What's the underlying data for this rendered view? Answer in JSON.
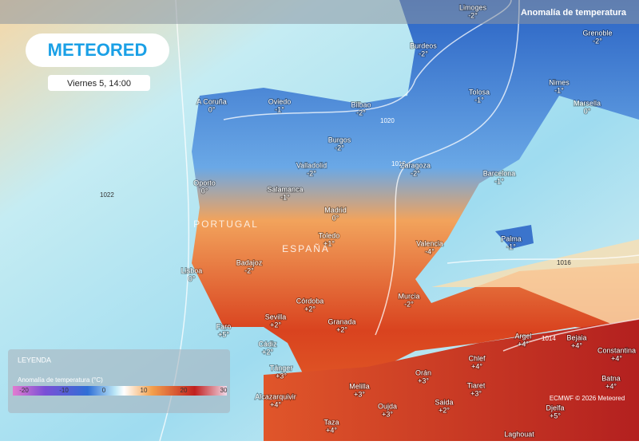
{
  "header": {
    "logo": "METEORED",
    "date": "Viernes 5, 14:00",
    "title": "Anomalía de temperatura"
  },
  "countries": [
    "PORTUGAL",
    "ESPAÑA"
  ],
  "isobars": [
    "1022",
    "1020",
    "1018",
    "1016",
    "1014"
  ],
  "cities": [
    {
      "name": "Limoges",
      "value": "-2°"
    },
    {
      "name": "Grenoble",
      "value": "-2°"
    },
    {
      "name": "Burdeos",
      "value": "-2°"
    },
    {
      "name": "Nimes",
      "value": "-1°"
    },
    {
      "name": "Tolosa",
      "value": "-1°"
    },
    {
      "name": "Marsella",
      "value": "0°"
    },
    {
      "name": "A Coruña",
      "value": "0°"
    },
    {
      "name": "Oviedo",
      "value": "-1°"
    },
    {
      "name": "Bilbao",
      "value": "-2°"
    },
    {
      "name": "Burgos",
      "value": "-2°"
    },
    {
      "name": "Zaragoza",
      "value": "-2°"
    },
    {
      "name": "Valladolid",
      "value": "-2°"
    },
    {
      "name": "Barcelona",
      "value": "-1°"
    },
    {
      "name": "Oporto",
      "value": "0°"
    },
    {
      "name": "Salamanca",
      "value": "-1°"
    },
    {
      "name": "Madrid",
      "value": "0°"
    },
    {
      "name": "Toledo",
      "value": "+1°"
    },
    {
      "name": "Valencia",
      "value": "-4°"
    },
    {
      "name": "Palma",
      "value": "-1°"
    },
    {
      "name": "Lisboa",
      "value": "0°"
    },
    {
      "name": "Badajoz",
      "value": "-2°"
    },
    {
      "name": "Córdoba",
      "value": "+2°"
    },
    {
      "name": "Sevilla",
      "value": "+2°"
    },
    {
      "name": "Granada",
      "value": "+2°"
    },
    {
      "name": "Murcia",
      "value": "-2°"
    },
    {
      "name": "Faro",
      "value": "+5°"
    },
    {
      "name": "Cádiz",
      "value": "+2°"
    },
    {
      "name": "Argel",
      "value": "+4°"
    },
    {
      "name": "Bejaia",
      "value": "+4°"
    },
    {
      "name": "Constantina",
      "value": "+4°"
    },
    {
      "name": "Tánger",
      "value": "+3°"
    },
    {
      "name": "Orán",
      "value": "+3°"
    },
    {
      "name": "Chlef",
      "value": "+4°"
    },
    {
      "name": "Batna",
      "value": "+4°"
    },
    {
      "name": "Melilla",
      "value": "+3°"
    },
    {
      "name": "Tiaret",
      "value": "+3°"
    },
    {
      "name": "Saida",
      "value": "+2°"
    },
    {
      "name": "Oujda",
      "value": "+3°"
    },
    {
      "name": "Djelfa",
      "value": "+5°"
    },
    {
      "name": "Alcazarquivir",
      "value": "+4°"
    },
    {
      "name": "Taza",
      "value": "+4°"
    },
    {
      "name": "Laghouat",
      "value": "+4°"
    }
  ],
  "legend": {
    "title": "LEYENDA",
    "subtitle": "Anomalía de temperatura (°C)",
    "ticks": [
      -20,
      -10,
      0,
      10,
      20,
      30
    ]
  },
  "credit": "ECMWF © 2026 Meteored"
}
